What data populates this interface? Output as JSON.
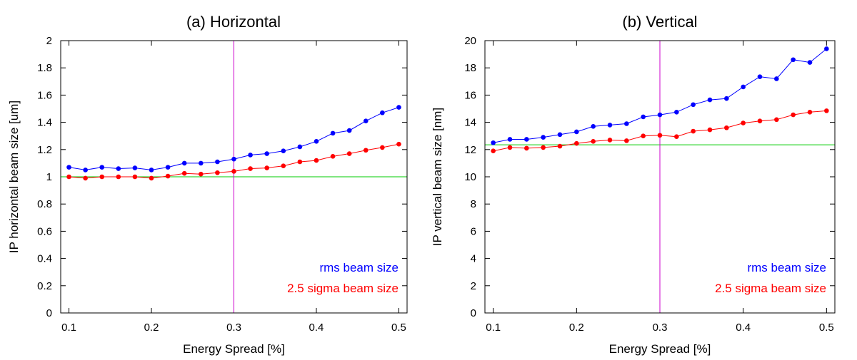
{
  "chart_data": [
    {
      "type": "line",
      "title": "(a) Horizontal",
      "xlabel": "Energy Spread [%]",
      "ylabel": "IP horizontal beam size [um]",
      "xlim": [
        0.09,
        0.51
      ],
      "ylim": [
        0,
        2
      ],
      "xticks": [
        0.1,
        0.2,
        0.3,
        0.4,
        0.5
      ],
      "xtick_labels": [
        "0.1",
        "0.2",
        "0.3",
        "0.4",
        "0.5"
      ],
      "yticks": [
        0,
        0.2,
        0.4,
        0.6,
        0.8,
        1,
        1.2,
        1.4,
        1.6,
        1.8,
        2
      ],
      "ytick_labels": [
        "0",
        "0.2",
        "0.4",
        "0.6",
        "0.8",
        "1",
        "1.2",
        "1.4",
        "1.6",
        "1.8",
        "2"
      ],
      "x": [
        0.1,
        0.12,
        0.14,
        0.16,
        0.18,
        0.2,
        0.22,
        0.24,
        0.26,
        0.28,
        0.3,
        0.32,
        0.34,
        0.36,
        0.38,
        0.4,
        0.42,
        0.44,
        0.46,
        0.48,
        0.5
      ],
      "series": [
        {
          "name": "rms beam size",
          "color": "#0000ff",
          "values": [
            1.07,
            1.05,
            1.07,
            1.06,
            1.065,
            1.05,
            1.07,
            1.1,
            1.1,
            1.11,
            1.13,
            1.16,
            1.17,
            1.19,
            1.22,
            1.26,
            1.32,
            1.34,
            1.41,
            1.47,
            1.51
          ]
        },
        {
          "name": "2.5 sigma beam size",
          "color": "#ff0000",
          "values": [
            1.0,
            0.99,
            1.0,
            1.0,
            1.0,
            0.99,
            1.005,
            1.025,
            1.02,
            1.03,
            1.04,
            1.06,
            1.065,
            1.08,
            1.11,
            1.12,
            1.15,
            1.17,
            1.195,
            1.215,
            1.24
          ]
        }
      ],
      "hline": {
        "y": 1.0,
        "color": "#00cc00"
      },
      "vline": {
        "x": 0.3,
        "color": "#cc00cc"
      },
      "legend_position": "bottom-right"
    },
    {
      "type": "line",
      "title": "(b) Vertical",
      "xlabel": "Energy Spread [%]",
      "ylabel": "IP vertical beam size [nm]",
      "xlim": [
        0.09,
        0.51
      ],
      "ylim": [
        0,
        20
      ],
      "xticks": [
        0.1,
        0.2,
        0.3,
        0.4,
        0.5
      ],
      "xtick_labels": [
        "0.1",
        "0.2",
        "0.3",
        "0.4",
        "0.5"
      ],
      "yticks": [
        0,
        2,
        4,
        6,
        8,
        10,
        12,
        14,
        16,
        18,
        20
      ],
      "ytick_labels": [
        "0",
        "2",
        "4",
        "6",
        "8",
        "10",
        "12",
        "14",
        "16",
        "18",
        "20"
      ],
      "x": [
        0.1,
        0.12,
        0.14,
        0.16,
        0.18,
        0.2,
        0.22,
        0.24,
        0.26,
        0.28,
        0.3,
        0.32,
        0.34,
        0.36,
        0.38,
        0.4,
        0.42,
        0.44,
        0.46,
        0.48,
        0.5
      ],
      "series": [
        {
          "name": "rms beam size",
          "color": "#0000ff",
          "values": [
            12.5,
            12.75,
            12.75,
            12.9,
            13.1,
            13.3,
            13.7,
            13.8,
            13.9,
            14.4,
            14.55,
            14.75,
            15.3,
            15.65,
            15.75,
            16.6,
            17.35,
            17.2,
            18.6,
            18.4,
            19.4
          ]
        },
        {
          "name": "2.5 sigma beam size",
          "color": "#ff0000",
          "values": [
            11.9,
            12.15,
            12.1,
            12.15,
            12.25,
            12.45,
            12.6,
            12.7,
            12.65,
            13.0,
            13.05,
            12.95,
            13.35,
            13.45,
            13.6,
            13.95,
            14.1,
            14.2,
            14.55,
            14.75,
            14.85
          ]
        }
      ],
      "hline": {
        "y": 12.35,
        "color": "#00cc00"
      },
      "vline": {
        "x": 0.3,
        "color": "#cc00cc"
      },
      "legend_position": "bottom-right"
    }
  ]
}
